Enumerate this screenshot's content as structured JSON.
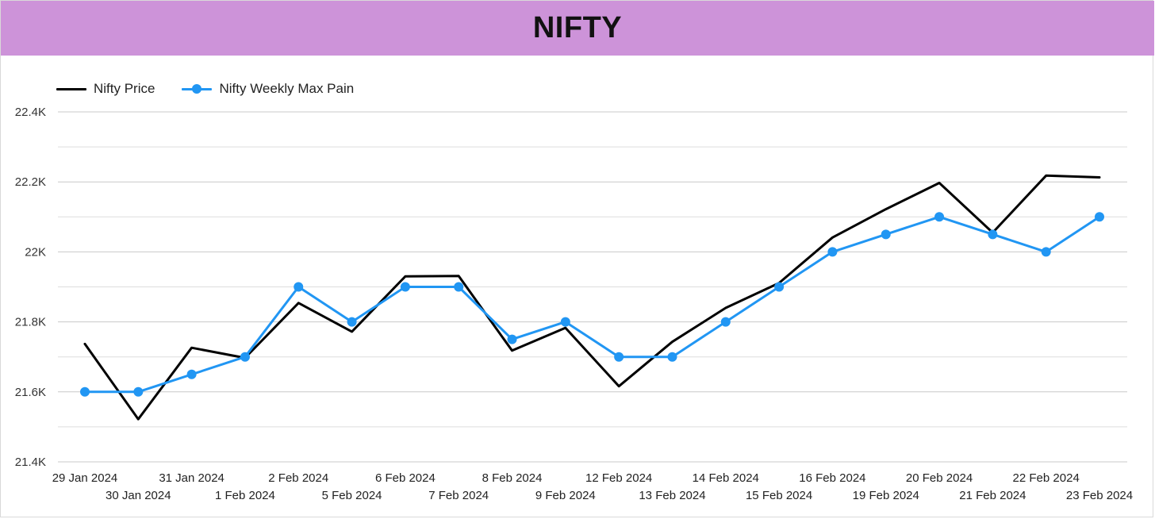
{
  "header": {
    "title": "NIFTY",
    "background": "#cd93d9"
  },
  "chart_data": {
    "type": "line",
    "title": "NIFTY",
    "xlabel": "",
    "ylabel": "",
    "ylim": [
      21400,
      22400
    ],
    "y_ticks": [
      21400,
      21600,
      21800,
      22000,
      22200,
      22400
    ],
    "y_tick_labels": [
      "21.4K",
      "21.6K",
      "21.8K",
      "22K",
      "22.2K",
      "22.4K"
    ],
    "y_minor_gridlines": [
      21500,
      21700,
      21900,
      22100,
      22300
    ],
    "grid": true,
    "legend_position": "top-left",
    "categories": [
      "29 Jan 2024",
      "30 Jan 2024",
      "31 Jan 2024",
      "1 Feb 2024",
      "2 Feb 2024",
      "5 Feb 2024",
      "6 Feb 2024",
      "7 Feb 2024",
      "8 Feb 2024",
      "9 Feb 2024",
      "12 Feb 2024",
      "13 Feb 2024",
      "14 Feb 2024",
      "15 Feb 2024",
      "16 Feb 2024",
      "19 Feb 2024",
      "20 Feb 2024",
      "21 Feb 2024",
      "22 Feb 2024",
      "23 Feb 2024"
    ],
    "series": [
      {
        "name": "Nifty Price",
        "color": "#000000",
        "markers": false,
        "values": [
          21737,
          21522,
          21726,
          21697,
          21854,
          21772,
          21930,
          21931,
          21718,
          21783,
          21616,
          21743,
          21840,
          21911,
          22041,
          22122,
          22197,
          22055,
          22218,
          22213
        ]
      },
      {
        "name": "Nifty Weekly Max Pain",
        "color": "#2196f3",
        "markers": true,
        "values": [
          21600,
          21600,
          21650,
          21700,
          21900,
          21800,
          21900,
          21900,
          21750,
          21800,
          21700,
          21700,
          21800,
          21900,
          22000,
          22050,
          22100,
          22050,
          22000,
          22100
        ]
      }
    ]
  }
}
